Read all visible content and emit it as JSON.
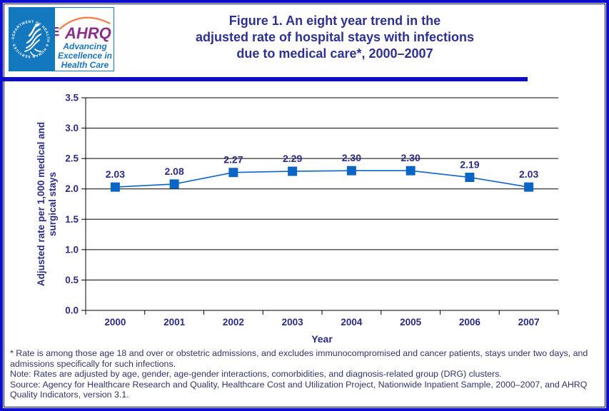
{
  "header": {
    "logo": {
      "seal_text": "DEPARTMENT OF HEALTH & HUMAN SERVICES · USA",
      "brand": "AHRQ",
      "tagline_lines": [
        "Advancing",
        "Excellence in",
        "Health Care"
      ]
    },
    "title_lines": [
      "Figure 1. An eight year trend in the",
      "adjusted rate of hospital stays with infections",
      "due to medical care*, 2000–2007"
    ]
  },
  "chart_data": {
    "type": "line",
    "title": "",
    "categories": [
      "2000",
      "2001",
      "2002",
      "2003",
      "2004",
      "2005",
      "2006",
      "2007"
    ],
    "values": [
      2.03,
      2.08,
      2.27,
      2.29,
      2.3,
      2.3,
      2.19,
      2.03
    ],
    "data_labels": [
      "2.03",
      "2.08",
      "2.27",
      "2.29",
      "2.30",
      "2.30",
      "2.19",
      "2.03"
    ],
    "xlabel": "Year",
    "ylabel": "Adjusted rate per 1,000 medical and surgical stays",
    "ylabel_lines": [
      "Adjusted rate per 1,000 medical and",
      "surgical stays"
    ],
    "ylim": [
      0.0,
      3.5
    ],
    "ytick_step": 0.5,
    "ytick_labels": [
      "0.0",
      "0.5",
      "1.0",
      "1.5",
      "2.0",
      "2.5",
      "3.0",
      "3.5"
    ],
    "grid": true,
    "legend": "none",
    "marker": "square",
    "series_color": "#0b65c6",
    "grid_color": "#000000",
    "tick_label_color": "#2b2b86",
    "data_label_color": "#2b2b86",
    "axis_title_color": "#2b2b86"
  },
  "footnotes": {
    "star": "* Rate is among those age 18 and over or obstetric admissions, and excludes immunocompromised and cancer patients, stays under two days, and admissions specifically for such infections.",
    "note": "Note: Rates are adjusted by age, gender, age-gender interactions, comorbidities, and diagnosis-related group (DRG) clusters.",
    "source": "Source: Agency for Healthcare Research and Quality, Healthcare Cost and Utilization Project, Nationwide Inpatient Sample, 2000–2007, and AHRQ Quality Indicators, version 3.1."
  },
  "colors": {
    "page_border": "#0d0dd2",
    "inner_hairline": "#00007a",
    "divider": "#0e0ec0",
    "title": "#2e3192",
    "footnote": "#333366",
    "logo_blue": "#1478be",
    "logo_purple": "#8b2f8f",
    "logo_tagline_blue": "#1b75bc",
    "logo_arc_orange": "#f08050"
  }
}
